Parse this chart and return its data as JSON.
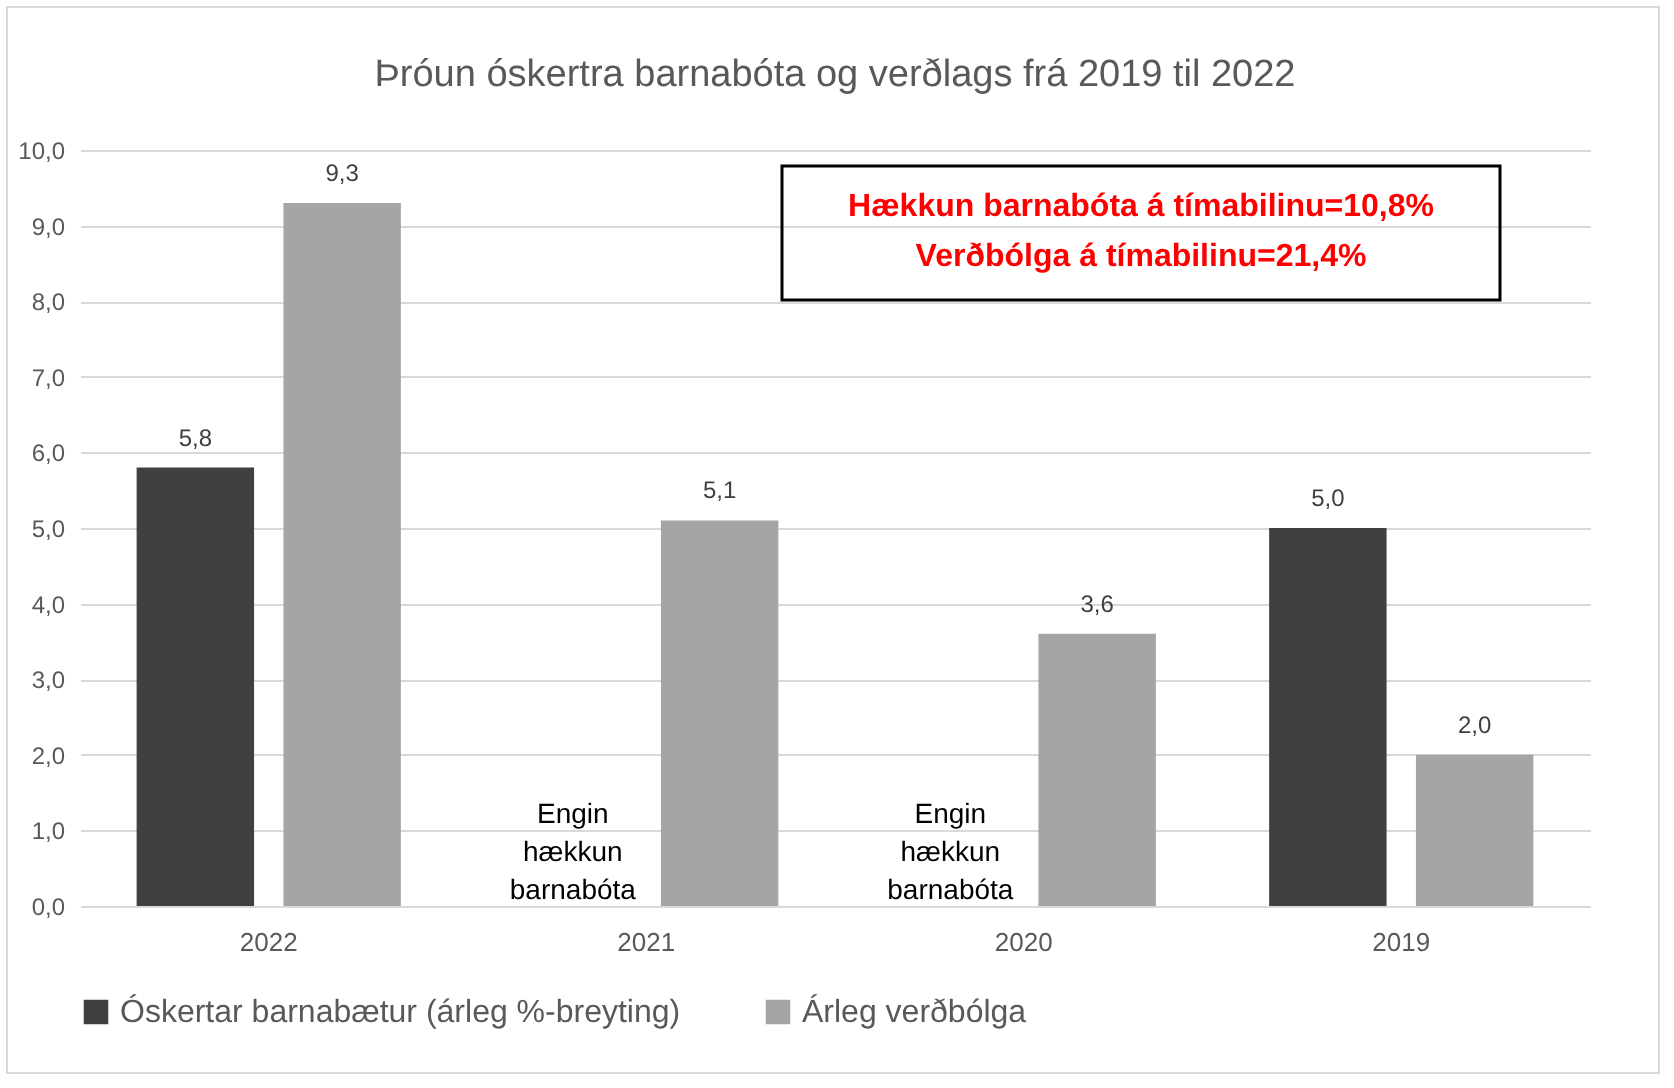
{
  "chart_data": {
    "type": "bar",
    "title": "Þróun óskertra barnabóta og verðlags frá 2019 til 2022",
    "categories": [
      "2022",
      "2021",
      "2020",
      "2019"
    ],
    "series": [
      {
        "name": "Óskertar barnabætur (árleg %-breyting)",
        "color": "#404040",
        "values": [
          5.8,
          null,
          null,
          5.0
        ],
        "value_labels": [
          "5,8",
          null,
          null,
          "5,0"
        ]
      },
      {
        "name": "Árleg verðbólga",
        "color": "#a5a5a5",
        "values": [
          9.3,
          5.1,
          3.6,
          2.0
        ],
        "value_labels": [
          "9,3",
          "5,1",
          "3,6",
          "2,0"
        ]
      }
    ],
    "ylim": [
      0,
      10
    ],
    "yticks": [
      {
        "value": 0,
        "label": "0,0"
      },
      {
        "value": 1,
        "label": "1,0"
      },
      {
        "value": 2,
        "label": "2,0"
      },
      {
        "value": 3,
        "label": "3,0"
      },
      {
        "value": 4,
        "label": "4,0"
      },
      {
        "value": 5,
        "label": "5,0"
      },
      {
        "value": 6,
        "label": "6,0"
      },
      {
        "value": 7,
        "label": "7,0"
      },
      {
        "value": 8,
        "label": "8,0"
      },
      {
        "value": 9,
        "label": "9,0"
      },
      {
        "value": 10,
        "label": "10,0"
      }
    ],
    "grid": "y",
    "legend": "bottom",
    "annotations": [
      "Hækkun barnabóta á tímabilinu=10,8%",
      "Verðbólga á tímabilinu=21,4%",
      "Engin hækkun barnabóta",
      "Engin hækkun barnabóta"
    ]
  }
}
